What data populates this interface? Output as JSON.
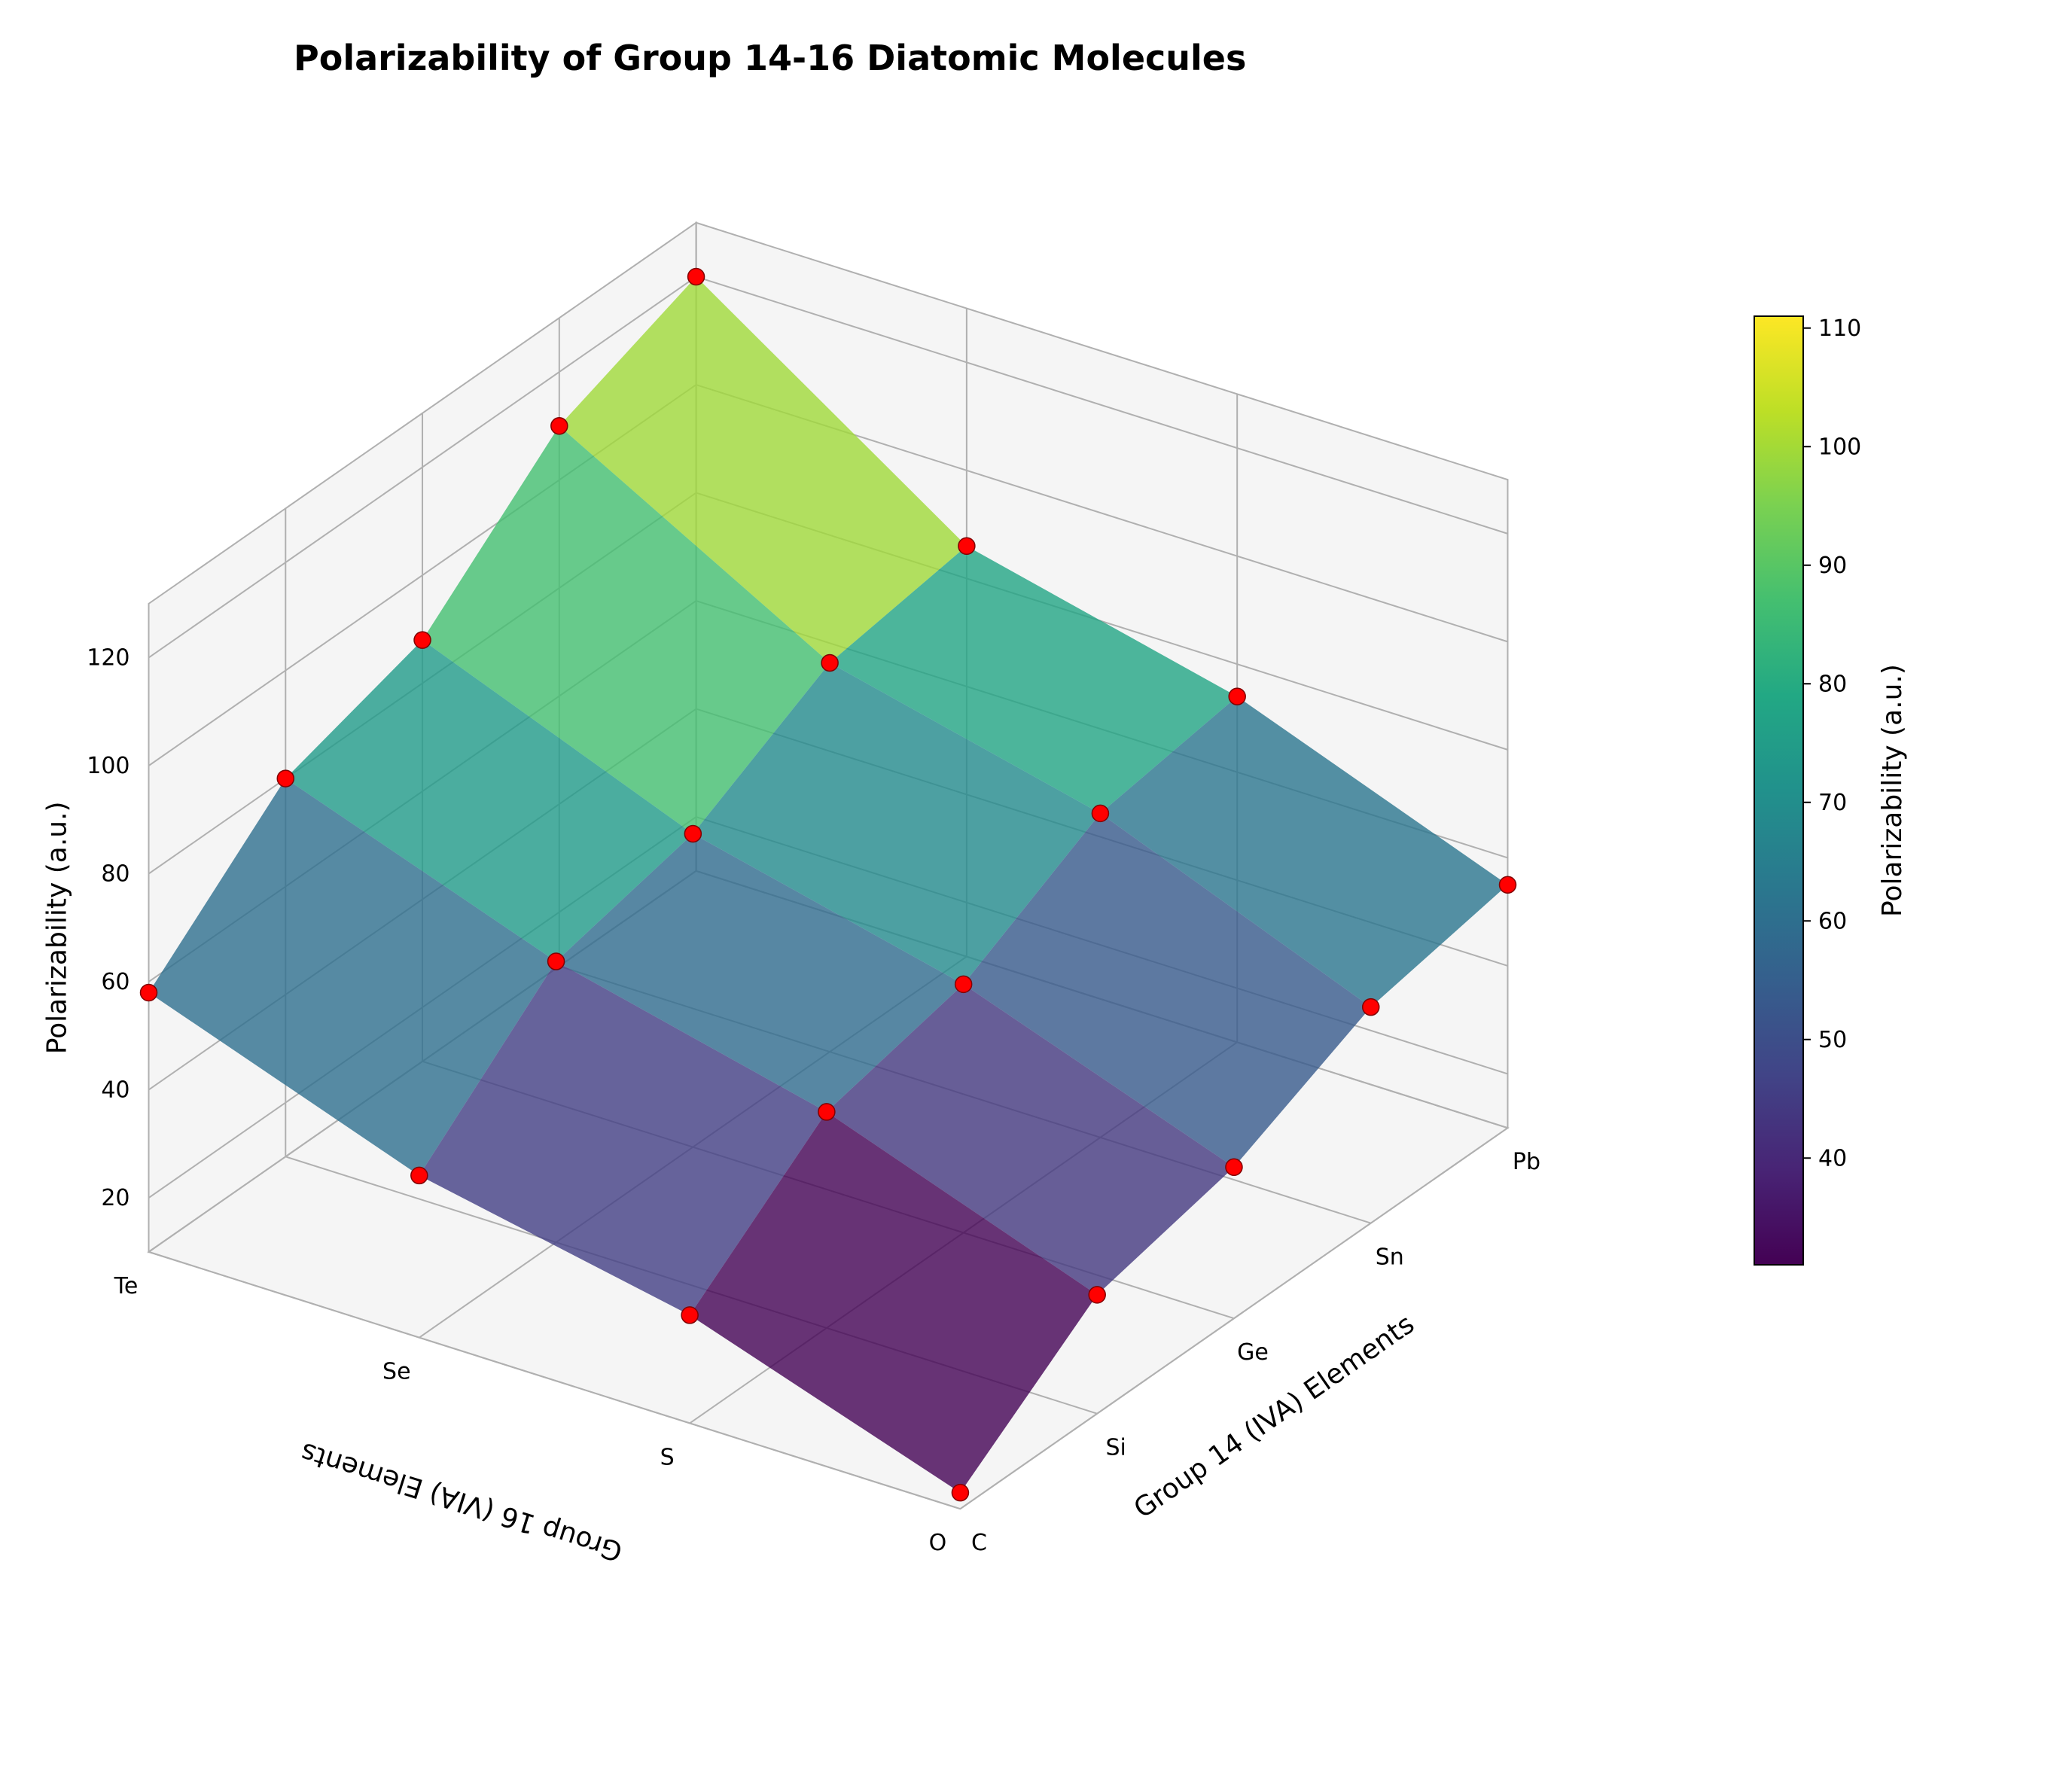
{
  "chart": {
    "type": "3d-surface",
    "title": "Polarizability of Group 14-16 Diatomic Molecules",
    "title_fontsize": 46,
    "title_fontweight": "bold",
    "background_color": "#ffffff",
    "pane_color": "#f5f5f5",
    "grid_color": "#b0b0b0",
    "edge_color": "#b0b0b0",
    "x_axis": {
      "label": "Group 14 (IVA) Elements",
      "ticks": [
        "C",
        "Si",
        "Ge",
        "Sn",
        "Pb"
      ],
      "label_fontsize": 36,
      "tick_fontsize": 30
    },
    "y_axis": {
      "label": "Group 16 (VIA) Elements",
      "ticks": [
        "O",
        "S",
        "Se",
        "Te"
      ],
      "label_fontsize": 36,
      "tick_fontsize": 30
    },
    "z_axis": {
      "label": "Polarizability (a.u.)",
      "ticks": [
        20,
        40,
        60,
        80,
        100,
        120
      ],
      "min": 10,
      "max": 130,
      "label_fontsize": 36,
      "tick_fontsize": 30
    },
    "data_grid": {
      "x_categories": [
        "C",
        "Si",
        "Ge",
        "Sn",
        "Pb"
      ],
      "y_categories": [
        "O",
        "S",
        "Se",
        "Te"
      ],
      "z_values": [
        [
          13,
          32,
          38,
          50,
          55
        ],
        [
          30,
          50,
          56,
          70,
          74
        ],
        [
          40,
          62,
          68,
          82,
          86
        ],
        [
          58,
          80,
          88,
          110,
          120
        ]
      ],
      "comment": "z_values[yIndex][xIndex] — polarizability in a.u. (atomic units), visually estimated from plot"
    },
    "scatter": {
      "marker_color": "#ff0000",
      "marker_edge": "#800000",
      "marker_size": 11
    },
    "surface": {
      "colormap": "viridis",
      "colormap_colors": {
        "0.00": "#440154",
        "0.10": "#482475",
        "0.20": "#414487",
        "0.30": "#355f8d",
        "0.40": "#2a788e",
        "0.50": "#21918c",
        "0.60": "#22a884",
        "0.70": "#44bf70",
        "0.80": "#7ad151",
        "0.90": "#bddf26",
        "1.00": "#fde725"
      },
      "alpha": 0.8,
      "vmin": 31,
      "vmax": 111
    },
    "colorbar": {
      "label": "Polarizability (a.u.)",
      "ticks": [
        40,
        50,
        60,
        70,
        80,
        90,
        100,
        110
      ],
      "label_fontsize": 36,
      "tick_fontsize": 30,
      "outline_color": "#000000"
    },
    "view": {
      "elev": 28,
      "azim": -56,
      "aspect": "auto"
    }
  }
}
